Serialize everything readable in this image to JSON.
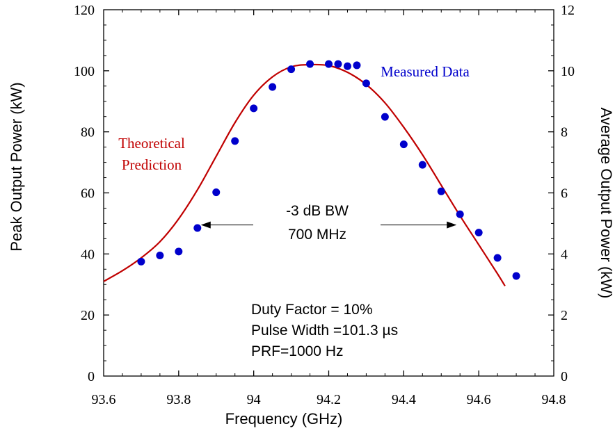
{
  "chart_data": {
    "type": "scatter",
    "xlabel": "Frequency (GHz)",
    "ylabel": "Peak Output Power (kW)",
    "y2label": "Average Output Power (kW)",
    "xlim": [
      93.6,
      94.8
    ],
    "ylim": [
      0,
      120
    ],
    "y2lim": [
      0,
      12
    ],
    "xticks": [
      "93.6",
      "93.8",
      "94",
      "94.2",
      "94.4",
      "94.6",
      "94.8"
    ],
    "yticks": [
      "0",
      "20",
      "40",
      "60",
      "80",
      "100",
      "120"
    ],
    "y2ticks": [
      "0",
      "2",
      "4",
      "6",
      "8",
      "10",
      "12"
    ],
    "grid": false,
    "series": [
      {
        "name": "Measured Data",
        "kind": "points",
        "color": "#0000cc",
        "x": [
          93.7,
          93.75,
          93.8,
          93.85,
          93.9,
          93.95,
          94.0,
          94.05,
          94.1,
          94.15,
          94.2,
          94.225,
          94.25,
          94.275,
          94.3,
          94.35,
          94.4,
          94.45,
          94.5,
          94.55,
          94.6,
          94.65,
          94.7
        ],
        "y": [
          37.5,
          39.5,
          40.8,
          48.5,
          60.2,
          77,
          87.7,
          94.7,
          100.5,
          102.2,
          102.2,
          102.2,
          101.5,
          101.8,
          95.9,
          84.9,
          75.9,
          69.2,
          60.5,
          53,
          47,
          38.7,
          32.8
        ]
      },
      {
        "name": "Theoretical Prediction",
        "kind": "line",
        "color": "#c00000",
        "x": [
          93.6,
          93.65,
          93.7,
          93.75,
          93.8,
          93.85,
          93.9,
          93.95,
          94.0,
          94.05,
          94.1,
          94.15,
          94.2,
          94.25,
          94.3,
          94.35,
          94.4,
          94.45,
          94.5,
          94.55,
          94.6,
          94.65,
          94.67
        ],
        "y": [
          31,
          34.5,
          38.7,
          44,
          51.5,
          61,
          72,
          83,
          92,
          98,
          101.3,
          102,
          101.7,
          99.5,
          95.5,
          89.5,
          81.5,
          72.5,
          62.5,
          52.5,
          43,
          33.5,
          29.5
        ]
      }
    ],
    "annotations": {
      "bandwidth_line1": "-3 dB BW",
      "bandwidth_line2": "700 MHz",
      "bandwidth_from": 93.85,
      "bandwidth_to": 94.55,
      "bandwidth_y": 49.5,
      "conditions": [
        "Duty Factor = 10%",
        "Pulse Width =101.3 µs",
        "PRF=1000 Hz"
      ]
    }
  }
}
